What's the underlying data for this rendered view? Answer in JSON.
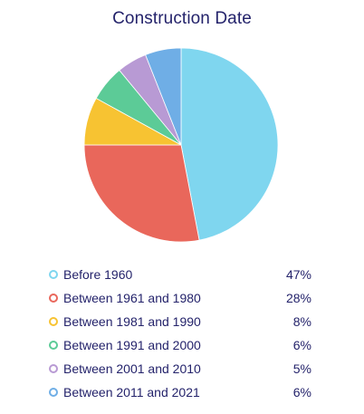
{
  "chart_data": {
    "type": "pie",
    "title": "Construction Date",
    "categories": [
      "Before 1960",
      "Between 1961 and 1980",
      "Between 1981 and 1990",
      "Between 1991 and 2000",
      "Between 2001 and 2010",
      "Between 2011 and 2021"
    ],
    "values": [
      47,
      28,
      8,
      6,
      5,
      6
    ],
    "value_labels": [
      "47%",
      "28%",
      "8%",
      "6%",
      "5%",
      "6%"
    ],
    "colors": [
      "#7fd6ef",
      "#e9675b",
      "#f7c332",
      "#5ccb97",
      "#b89ad4",
      "#6faee6"
    ],
    "legend_placement": "bottom",
    "start_angle": "top, clockwise"
  }
}
